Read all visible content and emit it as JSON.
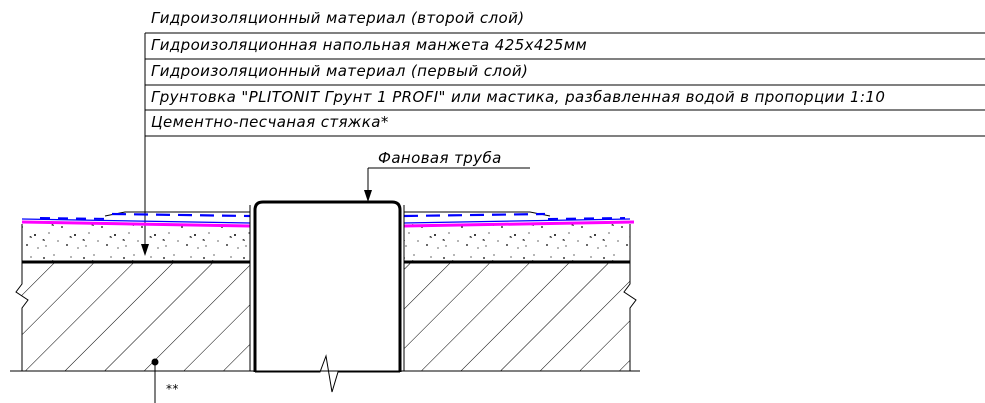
{
  "labels": {
    "layer_1": "Гидроизоляционный материал (второй слой)",
    "layer_2": "Гидроизоляционная напольная манжета 425х425мм",
    "layer_3": "Гидроизоляционный материал (первый слой)",
    "layer_4": "Грунтовка \"PLITONIT Грунт 1 PROFI\" или мастика, разбавленная водой в пропорции 1:10",
    "layer_5": "Цементно-песчаная стяжка*",
    "pipe": "Фановая труба",
    "base_note": "**"
  },
  "colors": {
    "line": "#000000",
    "waterproofing_pink": "#ff00ff",
    "cuff_blue": "#0000ff",
    "background": "#ffffff"
  }
}
